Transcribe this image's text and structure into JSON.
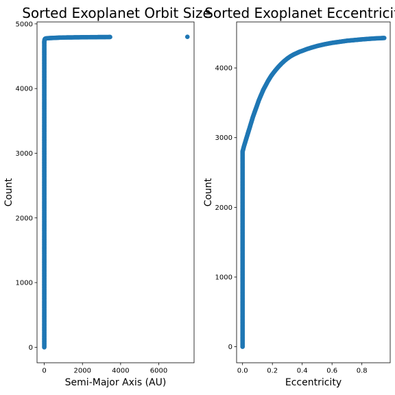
{
  "chart_data": [
    {
      "type": "scatter",
      "title": "Sorted Exoplanet Orbit Size",
      "xlabel": "Semi-Major Axis (AU)",
      "ylabel": "Count",
      "xlim": [
        -380,
        7850
      ],
      "ylim": [
        -240,
        5030
      ],
      "xticks": [
        0,
        2000,
        4000,
        6000
      ],
      "yticks": [
        0,
        1000,
        2000,
        3000,
        4000,
        5000
      ],
      "color": "#1f77b4",
      "grid": false,
      "legend": "none",
      "x": [
        0,
        0,
        0,
        0,
        0,
        0,
        0,
        0,
        0,
        0,
        0,
        0,
        0,
        0,
        0,
        0,
        0,
        0,
        0,
        0,
        0,
        0,
        0,
        0,
        0,
        0,
        0,
        0,
        0,
        0,
        0,
        0,
        0,
        0,
        0,
        0,
        0,
        0,
        0,
        0,
        0,
        0,
        0,
        0,
        0,
        0,
        0,
        0,
        0,
        0,
        0,
        5,
        10,
        20,
        40,
        80,
        150,
        250,
        400,
        550,
        700,
        800,
        1100,
        1650,
        1950,
        2300,
        2650,
        2950,
        3450,
        7500
      ],
      "y": [
        0,
        100,
        200,
        300,
        400,
        500,
        600,
        700,
        800,
        900,
        1000,
        1100,
        1200,
        1300,
        1400,
        1500,
        1600,
        1700,
        1800,
        1900,
        2000,
        2100,
        2200,
        2300,
        2400,
        2500,
        2600,
        2700,
        2800,
        2900,
        3000,
        3100,
        3200,
        3300,
        3400,
        3500,
        3600,
        3700,
        3800,
        3900,
        4000,
        4100,
        4200,
        4300,
        4400,
        4500,
        4550,
        4600,
        4650,
        4700,
        4730,
        4740,
        4750,
        4760,
        4770,
        4775,
        4778,
        4780,
        4782,
        4784,
        4786,
        4788,
        4790,
        4792,
        4793,
        4794,
        4795,
        4796,
        4797,
        4800
      ]
    },
    {
      "type": "scatter",
      "title": "Sorted Exoplanet Eccentricity",
      "xlabel": "Eccentricity",
      "ylabel": "Count",
      "xlim": [
        -0.04,
        0.99
      ],
      "ylim": [
        -230,
        4660
      ],
      "xticks": [
        0.0,
        0.2,
        0.4,
        0.6,
        0.8
      ],
      "yticks": [
        0,
        1000,
        2000,
        3000,
        4000
      ],
      "color": "#1f77b4",
      "grid": false,
      "legend": "none",
      "x": [
        0,
        0,
        0,
        0,
        0,
        0,
        0,
        0,
        0,
        0,
        0,
        0,
        0,
        0,
        0,
        0,
        0,
        0,
        0,
        0,
        0,
        0,
        0,
        0,
        0,
        0,
        0,
        0,
        0,
        0.01,
        0.02,
        0.03,
        0.04,
        0.05,
        0.06,
        0.07,
        0.08,
        0.09,
        0.1,
        0.11,
        0.12,
        0.13,
        0.14,
        0.15,
        0.16,
        0.17,
        0.18,
        0.19,
        0.2,
        0.22,
        0.24,
        0.26,
        0.28,
        0.3,
        0.32,
        0.34,
        0.36,
        0.38,
        0.4,
        0.43,
        0.46,
        0.5,
        0.55,
        0.6,
        0.65,
        0.7,
        0.75,
        0.8,
        0.85,
        0.9,
        0.93,
        0.95
      ],
      "y": [
        0,
        100,
        200,
        300,
        400,
        500,
        600,
        700,
        800,
        900,
        1000,
        1100,
        1200,
        1300,
        1400,
        1500,
        1600,
        1700,
        1800,
        1900,
        2000,
        2100,
        2200,
        2300,
        2400,
        2500,
        2600,
        2700,
        2800,
        2880,
        2950,
        3020,
        3090,
        3160,
        3230,
        3300,
        3360,
        3420,
        3480,
        3540,
        3590,
        3640,
        3690,
        3730,
        3770,
        3810,
        3845,
        3880,
        3910,
        3965,
        4015,
        4060,
        4100,
        4135,
        4165,
        4190,
        4210,
        4230,
        4245,
        4270,
        4290,
        4315,
        4340,
        4360,
        4375,
        4390,
        4400,
        4410,
        4418,
        4425,
        4428,
        4430
      ]
    }
  ]
}
